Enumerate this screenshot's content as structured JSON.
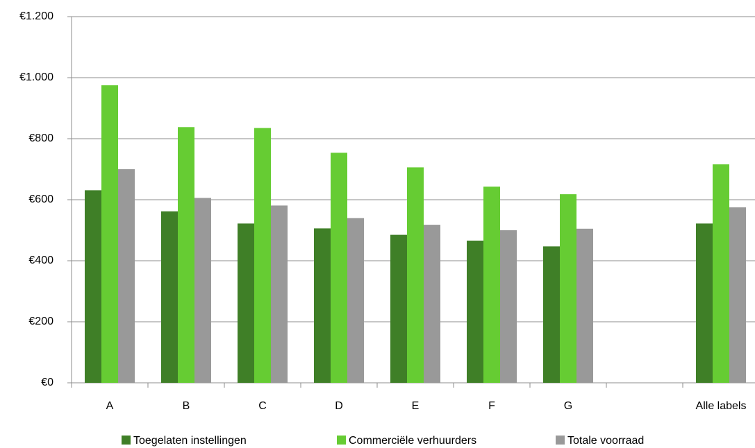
{
  "chart_data": {
    "type": "bar",
    "categories": [
      "A",
      "B",
      "C",
      "D",
      "E",
      "F",
      "G",
      null,
      "Alle labels"
    ],
    "series": [
      {
        "name": "Toegelaten instellingen",
        "color": "#3f7f27",
        "values": [
          631,
          562,
          522,
          506,
          485,
          466,
          447,
          null,
          522
        ]
      },
      {
        "name": "Commerciële verhuurders",
        "color": "#66cc33",
        "values": [
          975,
          838,
          835,
          754,
          706,
          643,
          618,
          null,
          716
        ]
      },
      {
        "name": "Totale voorraad",
        "color": "#999999",
        "values": [
          700,
          606,
          581,
          540,
          518,
          500,
          505,
          null,
          575
        ]
      }
    ],
    "ylim": [
      0,
      1200
    ],
    "yticks": [
      {
        "value": 0,
        "label": "€0"
      },
      {
        "value": 200,
        "label": "€200"
      },
      {
        "value": 400,
        "label": "€400"
      },
      {
        "value": 600,
        "label": "€600"
      },
      {
        "value": 800,
        "label": "€800"
      },
      {
        "value": 1000,
        "label": "€1.000"
      },
      {
        "value": 1200,
        "label": "€1.200"
      }
    ],
    "grid": true,
    "legend": "bottom"
  }
}
